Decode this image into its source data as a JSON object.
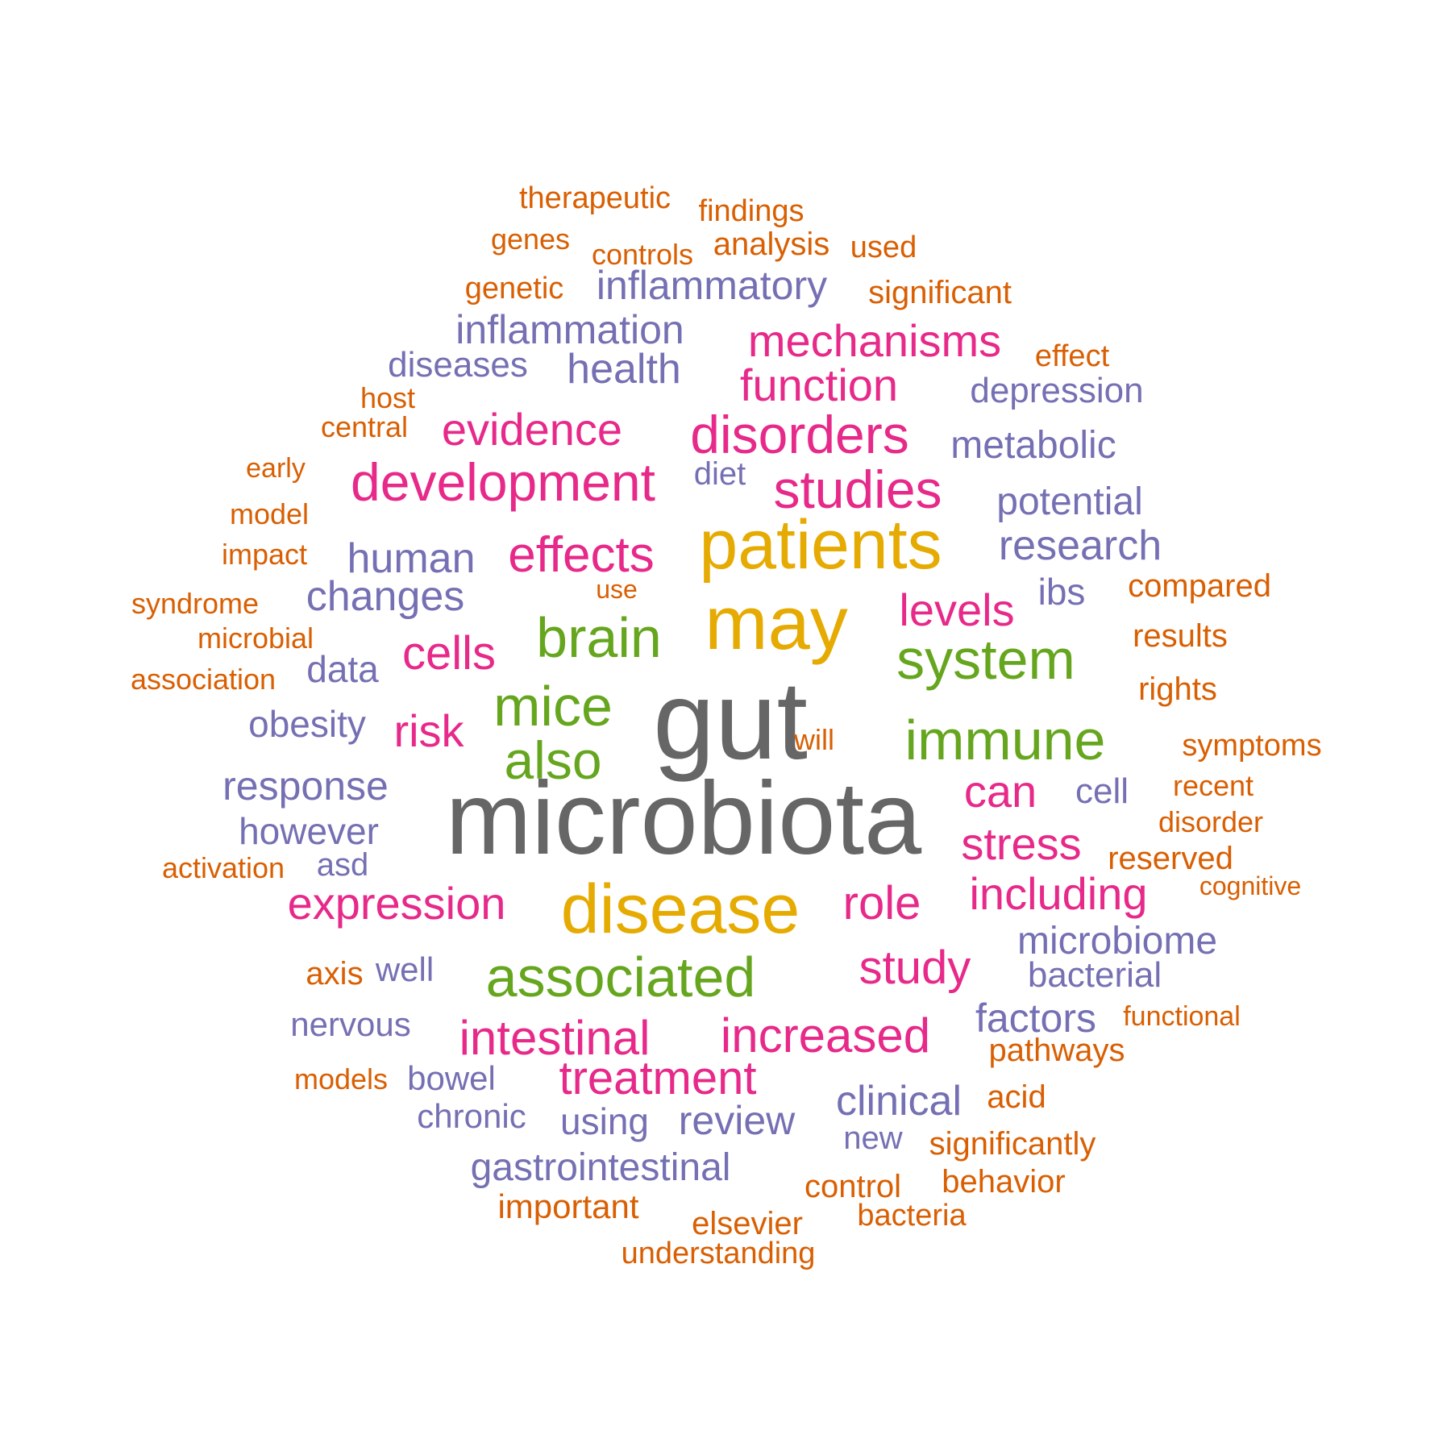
{
  "palette": {
    "gray": "#666666",
    "gold": "#E6AB02",
    "green": "#66A61E",
    "pink": "#E7298A",
    "purple": "#7570B3",
    "orange": "#D95F02"
  },
  "words": [
    {
      "text": "microbiota",
      "color": "gray"
    },
    {
      "text": "gut",
      "color": "gray"
    },
    {
      "text": "may",
      "color": "gold"
    },
    {
      "text": "patients",
      "color": "gold"
    },
    {
      "text": "disease",
      "color": "gold"
    },
    {
      "text": "brain",
      "color": "green"
    },
    {
      "text": "mice",
      "color": "green"
    },
    {
      "text": "system",
      "color": "green"
    },
    {
      "text": "immune",
      "color": "green"
    },
    {
      "text": "associated",
      "color": "green"
    },
    {
      "text": "also",
      "color": "green"
    },
    {
      "text": "disorders",
      "color": "pink"
    },
    {
      "text": "development",
      "color": "pink"
    },
    {
      "text": "studies",
      "color": "pink"
    },
    {
      "text": "effects",
      "color": "pink"
    },
    {
      "text": "mechanisms",
      "color": "pink"
    },
    {
      "text": "function",
      "color": "pink"
    },
    {
      "text": "evidence",
      "color": "pink"
    },
    {
      "text": "cells",
      "color": "pink"
    },
    {
      "text": "levels",
      "color": "pink"
    },
    {
      "text": "risk",
      "color": "pink"
    },
    {
      "text": "can",
      "color": "pink"
    },
    {
      "text": "stress",
      "color": "pink"
    },
    {
      "text": "expression",
      "color": "pink"
    },
    {
      "text": "role",
      "color": "pink"
    },
    {
      "text": "including",
      "color": "pink"
    },
    {
      "text": "study",
      "color": "pink"
    },
    {
      "text": "intestinal",
      "color": "pink"
    },
    {
      "text": "increased",
      "color": "pink"
    },
    {
      "text": "treatment",
      "color": "pink"
    },
    {
      "text": "inflammatory",
      "color": "purple"
    },
    {
      "text": "inflammation",
      "color": "purple"
    },
    {
      "text": "health",
      "color": "purple"
    },
    {
      "text": "diseases",
      "color": "purple"
    },
    {
      "text": "depression",
      "color": "purple"
    },
    {
      "text": "metabolic",
      "color": "purple"
    },
    {
      "text": "diet",
      "color": "purple"
    },
    {
      "text": "potential",
      "color": "purple"
    },
    {
      "text": "human",
      "color": "purple"
    },
    {
      "text": "research",
      "color": "purple"
    },
    {
      "text": "changes",
      "color": "purple"
    },
    {
      "text": "ibs",
      "color": "purple"
    },
    {
      "text": "data",
      "color": "purple"
    },
    {
      "text": "obesity",
      "color": "purple"
    },
    {
      "text": "response",
      "color": "purple"
    },
    {
      "text": "cell",
      "color": "purple"
    },
    {
      "text": "however",
      "color": "purple"
    },
    {
      "text": "asd",
      "color": "purple"
    },
    {
      "text": "microbiome",
      "color": "purple"
    },
    {
      "text": "well",
      "color": "purple"
    },
    {
      "text": "bacterial",
      "color": "purple"
    },
    {
      "text": "factors",
      "color": "purple"
    },
    {
      "text": "nervous",
      "color": "purple"
    },
    {
      "text": "bowel",
      "color": "purple"
    },
    {
      "text": "clinical",
      "color": "purple"
    },
    {
      "text": "chronic",
      "color": "purple"
    },
    {
      "text": "using",
      "color": "purple"
    },
    {
      "text": "review",
      "color": "purple"
    },
    {
      "text": "new",
      "color": "purple"
    },
    {
      "text": "gastrointestinal",
      "color": "purple"
    },
    {
      "text": "therapeutic",
      "color": "orange"
    },
    {
      "text": "findings",
      "color": "orange"
    },
    {
      "text": "genes",
      "color": "orange"
    },
    {
      "text": "controls",
      "color": "orange"
    },
    {
      "text": "analysis",
      "color": "orange"
    },
    {
      "text": "used",
      "color": "orange"
    },
    {
      "text": "genetic",
      "color": "orange"
    },
    {
      "text": "significant",
      "color": "orange"
    },
    {
      "text": "effect",
      "color": "orange"
    },
    {
      "text": "host",
      "color": "orange"
    },
    {
      "text": "central",
      "color": "orange"
    },
    {
      "text": "early",
      "color": "orange"
    },
    {
      "text": "model",
      "color": "orange"
    },
    {
      "text": "impact",
      "color": "orange"
    },
    {
      "text": "compared",
      "color": "orange"
    },
    {
      "text": "use",
      "color": "orange"
    },
    {
      "text": "syndrome",
      "color": "orange"
    },
    {
      "text": "results",
      "color": "orange"
    },
    {
      "text": "microbial",
      "color": "orange"
    },
    {
      "text": "association",
      "color": "orange"
    },
    {
      "text": "rights",
      "color": "orange"
    },
    {
      "text": "will",
      "color": "orange"
    },
    {
      "text": "symptoms",
      "color": "orange"
    },
    {
      "text": "recent",
      "color": "orange"
    },
    {
      "text": "disorder",
      "color": "orange"
    },
    {
      "text": "activation",
      "color": "orange"
    },
    {
      "text": "reserved",
      "color": "orange"
    },
    {
      "text": "cognitive",
      "color": "orange"
    },
    {
      "text": "axis",
      "color": "orange"
    },
    {
      "text": "functional",
      "color": "orange"
    },
    {
      "text": "pathways",
      "color": "orange"
    },
    {
      "text": "models",
      "color": "orange"
    },
    {
      "text": "acid",
      "color": "orange"
    },
    {
      "text": "significantly",
      "color": "orange"
    },
    {
      "text": "control",
      "color": "orange"
    },
    {
      "text": "behavior",
      "color": "orange"
    },
    {
      "text": "important",
      "color": "orange"
    },
    {
      "text": "elsevier",
      "color": "orange"
    },
    {
      "text": "bacteria",
      "color": "orange"
    },
    {
      "text": "understanding",
      "color": "orange"
    }
  ]
}
